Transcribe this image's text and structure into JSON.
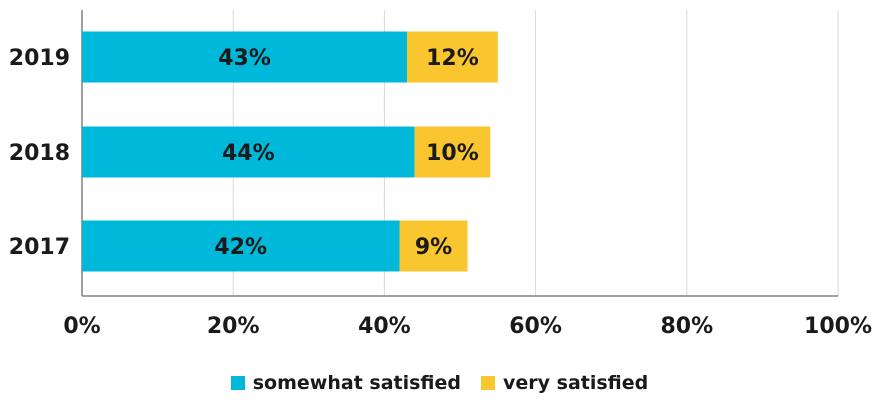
{
  "chart_data": {
    "type": "bar",
    "orientation": "horizontal",
    "stacked": true,
    "categories": [
      "2019",
      "2018",
      "2017"
    ],
    "series": [
      {
        "name": "somewhat satisfied",
        "values": [
          43,
          44,
          42
        ],
        "labels": [
          "43%",
          "44%",
          "42%"
        ],
        "color": "#00b8d9"
      },
      {
        "name": "very satisfied",
        "values": [
          12,
          10,
          9
        ],
        "labels": [
          "12%",
          "10%",
          "9%"
        ],
        "color": "#f9c62f"
      }
    ],
    "xlim": [
      0,
      100
    ],
    "xticks": [
      0,
      20,
      40,
      60,
      80,
      100
    ],
    "xtick_labels": [
      "0%",
      "20%",
      "40%",
      "60%",
      "80%",
      "100%"
    ],
    "grid": "vertical",
    "legend_position": "bottom-center",
    "title": "",
    "xlabel": "",
    "ylabel": ""
  }
}
